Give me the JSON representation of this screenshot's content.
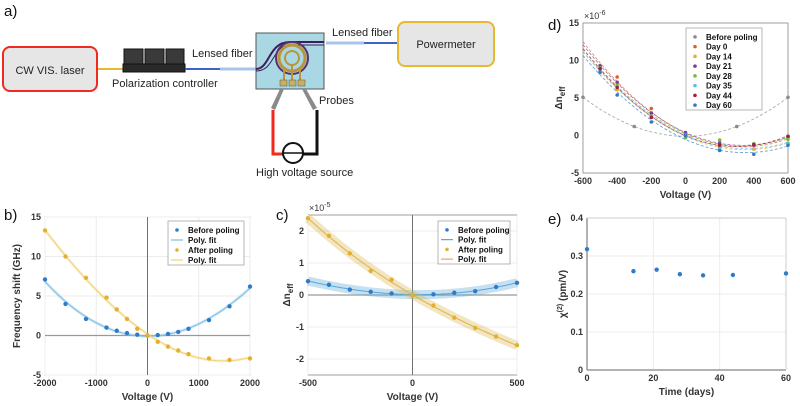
{
  "panel_labels": {
    "a": "a)",
    "b": "b)",
    "c": "c)",
    "d": "d)",
    "e": "e)"
  },
  "setup": {
    "laser": "CW VIS. laser",
    "polarization_controller": "Polarization controller",
    "lensed_fiber_left": "Lensed fiber",
    "lensed_fiber_right": "Lensed fiber",
    "powermeter": "Powermeter",
    "probes": "Probes",
    "hv_source": "High voltage source"
  },
  "colors": {
    "blue": "#2f7bc8",
    "yellow": "#e4b030",
    "gray": "#8a8a8a"
  },
  "chart_data": [
    {
      "id": "b",
      "type": "scatter",
      "xlabel": "Voltage (V)",
      "ylabel": "Frequency shift (GHz)",
      "exponent": "",
      "xlim": [
        -2000,
        2000
      ],
      "ylim": [
        -5,
        15
      ],
      "xticks": [
        -2000,
        -1000,
        0,
        1000,
        2000
      ],
      "yticks": [
        -5,
        0,
        5,
        10,
        15
      ],
      "grid": true,
      "zero_lines": true,
      "legend_position": "top-right",
      "series": [
        {
          "name": "Before poling",
          "fit_name": "Poly. fit",
          "color": "#2f7bc8",
          "fit_color": "#7fbfe6",
          "x": [
            -2000,
            -1600,
            -1200,
            -800,
            -600,
            -400,
            -200,
            0,
            200,
            400,
            600,
            800,
            1200,
            1600,
            2000
          ],
          "y": [
            7.1,
            4.0,
            2.1,
            1.0,
            0.6,
            0.3,
            0.1,
            0,
            0.05,
            0.2,
            0.45,
            0.85,
            1.95,
            3.7,
            6.2
          ]
        },
        {
          "name": "After poling",
          "fit_name": "Poly. fit",
          "color": "#e4b030",
          "fit_color": "#f0d37a",
          "x": [
            -2000,
            -1600,
            -1200,
            -800,
            -600,
            -400,
            -200,
            0,
            200,
            400,
            600,
            800,
            1200,
            1600,
            2000
          ],
          "y": [
            13.3,
            10.0,
            7.3,
            4.8,
            3.3,
            2.1,
            0.85,
            0,
            -0.8,
            -1.4,
            -1.9,
            -2.35,
            -2.9,
            -3.1,
            -2.9
          ]
        }
      ]
    },
    {
      "id": "c",
      "type": "scatter",
      "xlabel": "Voltage (V)",
      "ylabel": "Δn",
      "ylabel_sub": "eff",
      "exponent": "×10",
      "exponent_power": "-5",
      "xlim": [
        -500,
        500
      ],
      "ylim": [
        -2.5,
        2.5
      ],
      "xticks": [
        -500,
        0,
        500
      ],
      "yticks": [
        -2,
        -1,
        0,
        1,
        2
      ],
      "grid": true,
      "zero_lines": true,
      "legend_position": "top-right",
      "series": [
        {
          "name": "Before poling",
          "fit_name": "Poly. fit",
          "color": "#2f7bc8",
          "fit_color": "#5aa5d6",
          "x": [
            -500,
            -400,
            -300,
            -200,
            -100,
            0,
            100,
            200,
            300,
            400,
            500
          ],
          "y": [
            0.43,
            0.32,
            0.17,
            0.1,
            0.05,
            0,
            0.02,
            0.07,
            0.12,
            0.25,
            0.38
          ]
        },
        {
          "name": "After poling",
          "fit_name": "Poly. fit",
          "color": "#e4b030",
          "fit_color": "#d9b44a",
          "x": [
            -500,
            -400,
            -300,
            -200,
            -100,
            0,
            100,
            200,
            300,
            400,
            500
          ],
          "y": [
            2.4,
            1.85,
            1.3,
            0.75,
            0.48,
            0,
            -0.33,
            -0.71,
            -1.03,
            -1.3,
            -1.57
          ]
        }
      ]
    },
    {
      "id": "d",
      "type": "scatter",
      "xlabel": "Voltage (V)",
      "ylabel": "Δn",
      "ylabel_sub": "eff",
      "exponent": "×10",
      "exponent_power": "-6",
      "xlim": [
        -600,
        600
      ],
      "ylim": [
        -5,
        15
      ],
      "xticks": [
        -600,
        -400,
        -200,
        0,
        200,
        400,
        600
      ],
      "yticks": [
        -5,
        0,
        5,
        10,
        15
      ],
      "grid": false,
      "zero_lines": false,
      "legend_position": "top-right",
      "series": [
        {
          "name": "Before poling",
          "color": "#8a8a8a",
          "x": [
            -600,
            -300,
            300,
            600
          ],
          "y": [
            5.1,
            1.2,
            1.2,
            5.1
          ]
        },
        {
          "name": "Day 0",
          "color": "#e0602a",
          "x": [
            -500,
            -400,
            -200,
            0,
            200,
            400,
            600
          ],
          "y": [
            9.0,
            7.8,
            3.6,
            0.2,
            -1.5,
            -1.8,
            -0.1
          ]
        },
        {
          "name": "Day 14",
          "color": "#e8b020",
          "x": [
            -500,
            -400,
            -200,
            0,
            200,
            400,
            600
          ],
          "y": [
            8.7,
            6.1,
            2.5,
            0,
            -1.7,
            -1.8,
            -1.0
          ]
        },
        {
          "name": "Day 21",
          "color": "#7e3a9e",
          "x": [
            -500,
            -400,
            -200,
            0,
            200,
            400,
            600
          ],
          "y": [
            9.3,
            7.1,
            3.0,
            0.4,
            -1.0,
            -1.3,
            -0.2
          ]
        },
        {
          "name": "Day 28",
          "color": "#78b83a",
          "x": [
            -500,
            -400,
            -200,
            0,
            200,
            400,
            600
          ],
          "y": [
            9.0,
            6.7,
            2.6,
            -0.3,
            -0.6,
            -1.1,
            -0.5
          ]
        },
        {
          "name": "Day 35",
          "color": "#4fc3ee",
          "x": [
            -500,
            -400,
            -200,
            0,
            200,
            400,
            600
          ],
          "y": [
            8.6,
            6.4,
            2.5,
            0.1,
            -1.8,
            -1.2,
            -1.1
          ]
        },
        {
          "name": "Day 44",
          "color": "#a3203a",
          "x": [
            -500,
            -400,
            -200,
            0,
            200,
            400,
            600
          ],
          "y": [
            8.9,
            6.4,
            2.4,
            0,
            -1.3,
            -1.2,
            -0.1
          ]
        },
        {
          "name": "Day 60",
          "color": "#2f7bc8",
          "x": [
            -500,
            -400,
            -200,
            0,
            200,
            400,
            600
          ],
          "y": [
            8.4,
            5.4,
            1.8,
            0,
            -2.0,
            -2.5,
            -1.3
          ]
        }
      ]
    },
    {
      "id": "e",
      "type": "scatter",
      "xlabel": "Time (days)",
      "ylabel": "χ",
      "ylabel_sup": "(2)",
      "ylabel_rest": " (pm/V)",
      "exponent": "",
      "xlim": [
        0,
        60
      ],
      "ylim": [
        0,
        0.4
      ],
      "xticks": [
        0,
        20,
        40,
        60
      ],
      "yticks": [
        0,
        0.1,
        0.2,
        0.3,
        0.4
      ],
      "grid": true,
      "zero_lines": false,
      "series": [
        {
          "name": "χ(2)",
          "color": "#2f7bc8",
          "x": [
            0,
            14,
            21,
            28,
            35,
            44,
            60
          ],
          "y": [
            0.318,
            0.26,
            0.264,
            0.252,
            0.249,
            0.25,
            0.254
          ]
        }
      ]
    }
  ]
}
